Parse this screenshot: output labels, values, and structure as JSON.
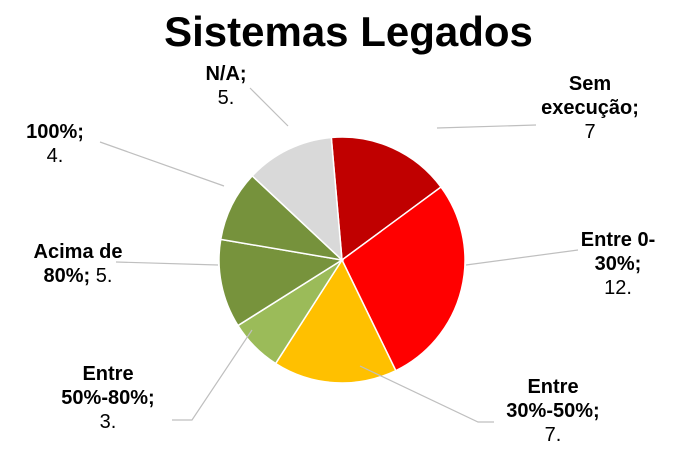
{
  "chart_data": {
    "type": "pie",
    "title": "Sistemas Legados",
    "categories": [
      "Sem execução",
      "Entre 0-30%",
      "Entre 30%-50%",
      "Entre 50%-80%",
      "Acima de 80%",
      "100%",
      "N/A"
    ],
    "label_separator": ";",
    "values": [
      7,
      12,
      7,
      3,
      5,
      4,
      5
    ],
    "value_labels": [
      "7",
      "12.",
      "7.",
      "3.",
      "5.",
      "4.",
      "5."
    ],
    "colors": [
      "#c00000",
      "#ff0000",
      "#ffc000",
      "#9bbb59",
      "#77933c",
      "#76923c",
      "#d9d9d9"
    ]
  }
}
